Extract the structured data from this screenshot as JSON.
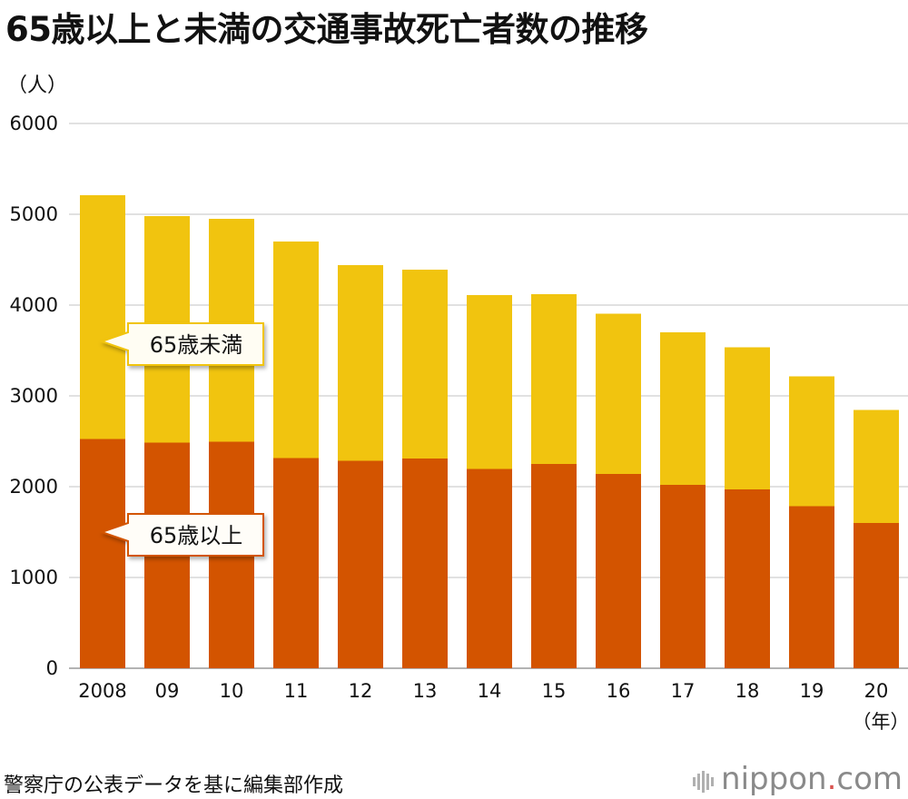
{
  "header": {
    "title": "65歳以上と未満の交通事故死亡者数の推移"
  },
  "footer": {
    "source": "警察庁の公表データを基に編集部作成",
    "brand_main": "nippon",
    "brand_dot": ".",
    "brand_tld": "com"
  },
  "chart_data": {
    "type": "bar",
    "stacked": true,
    "title": "65歳以上と未満の交通事故死亡者数の推移",
    "ylabel": "（人）",
    "xlabel_unit": "（年）",
    "ylim": [
      0,
      6000
    ],
    "yticks": [
      0,
      1000,
      2000,
      3000,
      4000,
      5000,
      6000
    ],
    "grid": true,
    "categories": [
      "2008",
      "09",
      "10",
      "11",
      "12",
      "13",
      "14",
      "15",
      "16",
      "17",
      "18",
      "19",
      "20"
    ],
    "series": [
      {
        "name": "65歳以上",
        "color": "#d35400",
        "values": [
          2525,
          2485,
          2495,
          2315,
          2285,
          2310,
          2195,
          2250,
          2140,
          2020,
          1970,
          1785,
          1600
        ]
      },
      {
        "name": "65歳未満",
        "color": "#f1c40f",
        "values": [
          2685,
          2495,
          2455,
          2385,
          2155,
          2080,
          1915,
          1870,
          1765,
          1680,
          1565,
          1430,
          1245
        ]
      }
    ],
    "legend": "callouts inside bars"
  }
}
